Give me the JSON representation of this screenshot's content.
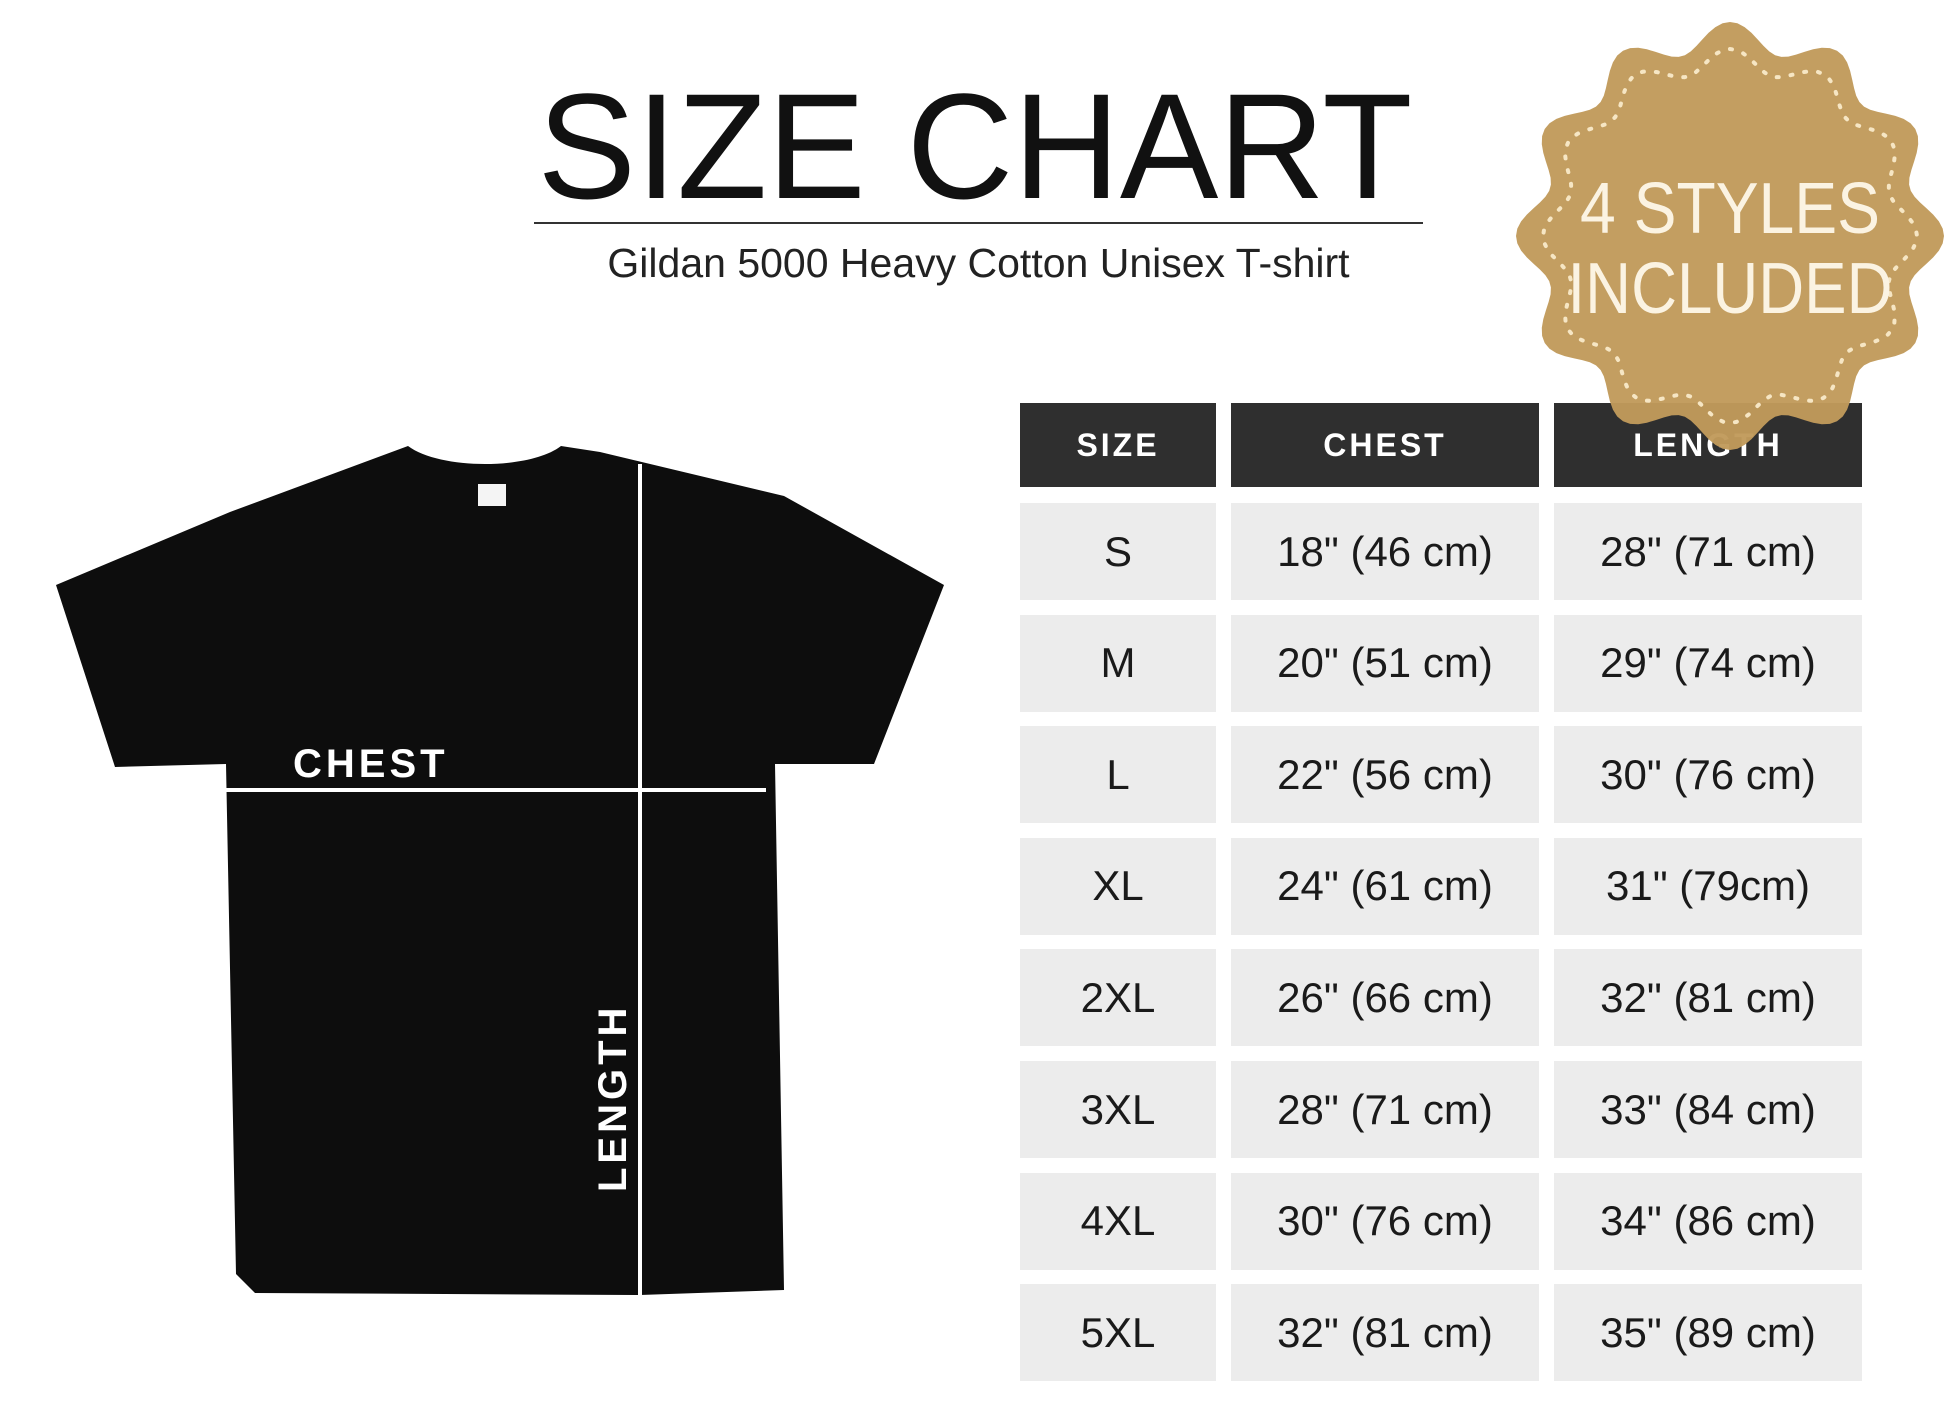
{
  "header": {
    "title": "SIZE CHART",
    "subtitle": "Gildan 5000 Heavy Cotton Unisex T-shirt"
  },
  "badge": {
    "line1": "4 STYLES",
    "line2": "INCLUDED",
    "color": "#c19a5b"
  },
  "diagram": {
    "chest_label": "CHEST",
    "length_label": "LENGTH",
    "shirt_color": "#0d0d0d"
  },
  "table": {
    "columns": [
      "SIZE",
      "CHEST",
      "LENGTH"
    ],
    "rows": [
      [
        "S",
        "18\" (46 cm)",
        "28\" (71 cm)"
      ],
      [
        "M",
        "20\" (51 cm)",
        "29\" (74 cm)"
      ],
      [
        "L",
        "22\" (56 cm)",
        "30\" (76 cm)"
      ],
      [
        "XL",
        "24\" (61 cm)",
        "31\" (79cm)"
      ],
      [
        "2XL",
        "26\" (66 cm)",
        "32\" (81 cm)"
      ],
      [
        "3XL",
        "28\" (71 cm)",
        "33\" (84 cm)"
      ],
      [
        "4XL",
        "30\" (76 cm)",
        "34\" (86 cm)"
      ],
      [
        "5XL",
        "32\" (81 cm)",
        "35\" (89 cm)"
      ]
    ],
    "header_color": "#2f2f2f",
    "cell_color": "#ececec"
  }
}
